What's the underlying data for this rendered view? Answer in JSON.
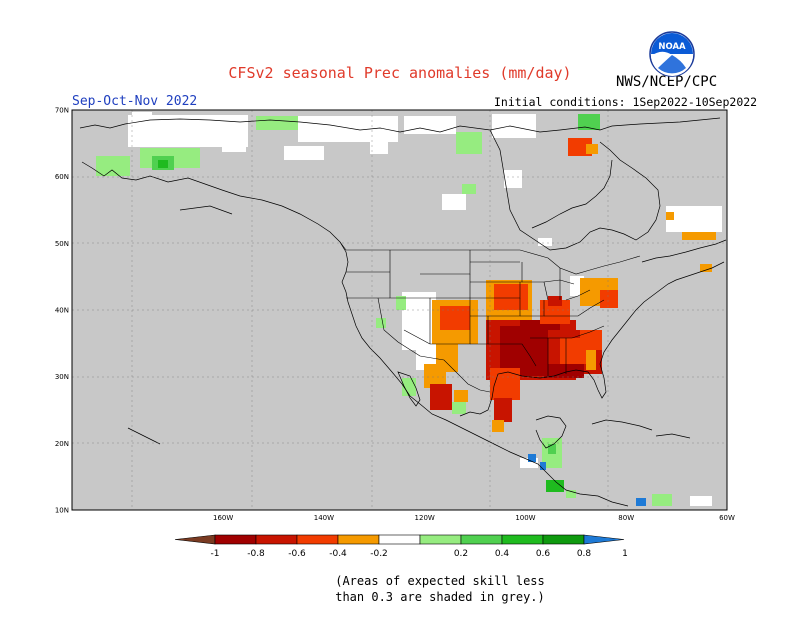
{
  "header": {
    "title": "CFSv2 seasonal Prec anomalies (mm/day)",
    "season": "Sep-Oct-Nov 2022",
    "initial_conditions": "Initial conditions: 1Sep2022-10Sep2022",
    "agency": "NWS/NCEP/CPC",
    "logo_text": "NOAA"
  },
  "map": {
    "region": "North America",
    "lon_range": [
      -190,
      -60
    ],
    "lat_range": [
      10,
      70
    ],
    "lat_labels": [
      "70N",
      "60N",
      "50N",
      "40N",
      "30N",
      "20N",
      "10N"
    ],
    "lon_labels": [
      "160W",
      "140W",
      "120W",
      "100W",
      "80W",
      "60W"
    ],
    "background_color": "#c8c8c8"
  },
  "legend": {
    "tick_labels": [
      "-1",
      "-0.8",
      "-0.6",
      "-0.4",
      "-0.2",
      "0.2",
      "0.4",
      "0.6",
      "0.8",
      "1"
    ],
    "colors": [
      "#7a3b22",
      "#a00000",
      "#c81400",
      "#f23c00",
      "#f59a00",
      "#ffffff",
      "#96ec80",
      "#50d050",
      "#1fbb1f",
      "#0f9a0f",
      "#1e7ad6"
    ]
  },
  "footnote": {
    "line1": "(Areas of expected skill less",
    "line2": "than 0.3 are shaded in grey.)"
  }
}
